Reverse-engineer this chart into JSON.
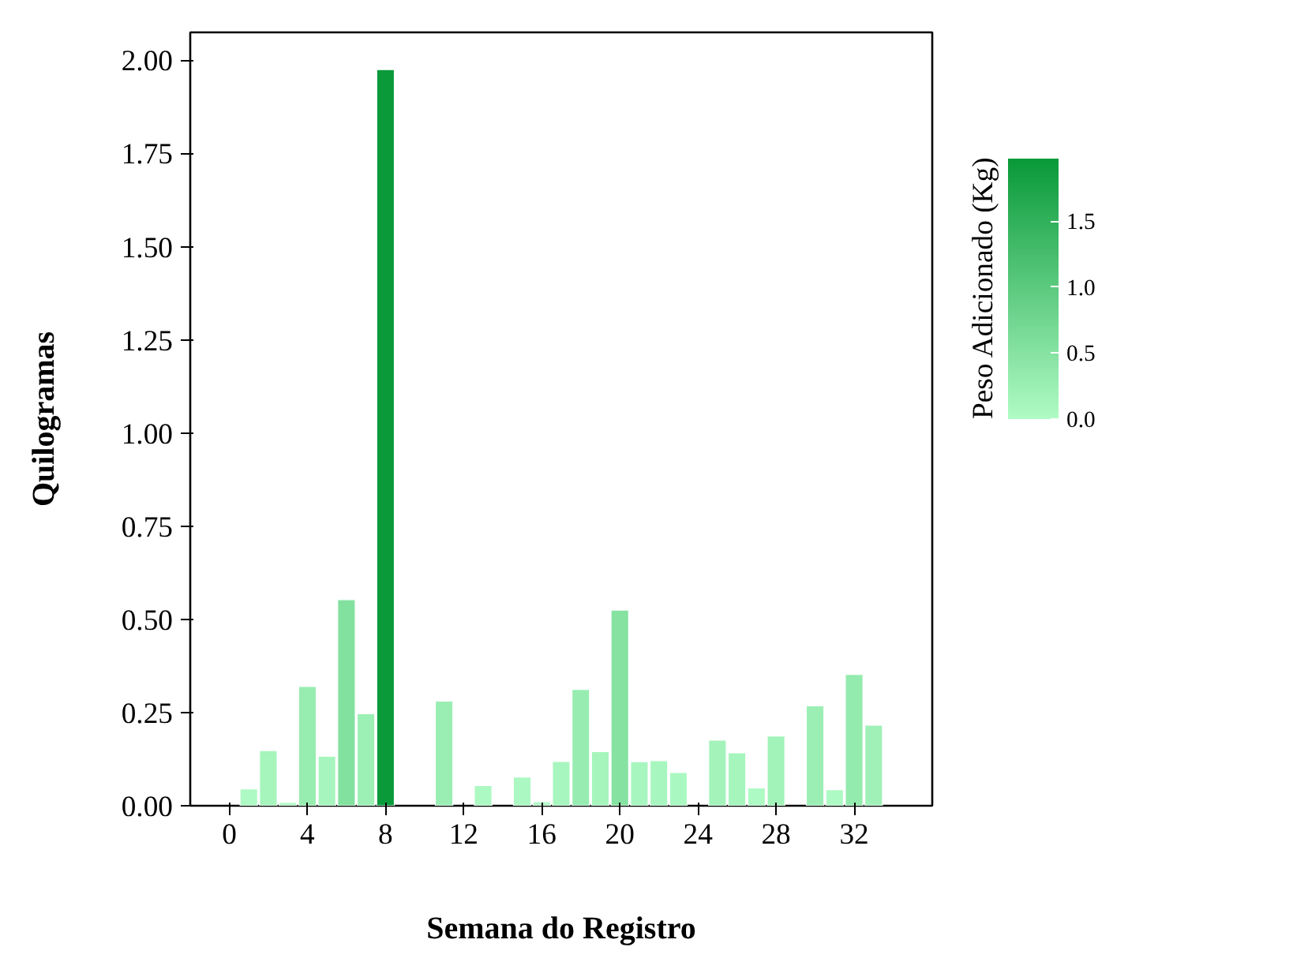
{
  "chart_data": {
    "type": "bar",
    "xlabel": "Semana do Registro",
    "ylabel": "Quilogramas",
    "legend_title": "Peso Adicionado (Kg)",
    "x": [
      1,
      2,
      3,
      4,
      5,
      6,
      7,
      8,
      9,
      10,
      11,
      12,
      13,
      14,
      15,
      16,
      17,
      18,
      19,
      20,
      21,
      22,
      23,
      24,
      25,
      26,
      27,
      28,
      29,
      30,
      31,
      32,
      33
    ],
    "values": [
      0.045,
      0.148,
      0.009,
      0.32,
      0.133,
      0.553,
      0.247,
      1.975,
      null,
      null,
      0.281,
      null,
      0.054,
      null,
      0.077,
      0.011,
      0.119,
      0.312,
      0.145,
      0.525,
      0.118,
      0.121,
      0.089,
      null,
      0.176,
      0.142,
      0.048,
      0.187,
      null,
      0.268,
      0.043,
      0.352,
      0.216
    ],
    "colors": [
      "#aefac4",
      "#a5f5bc",
      "#b1fcc6",
      "#97ecb0",
      "#a7f5be",
      "#83e1a0",
      "#9df0b5",
      "#0a9a3a",
      null,
      null,
      "#9aeeb3",
      null,
      "#adf9c3",
      null,
      "#abf8c2",
      "#b1fcc6",
      "#a8f6bf",
      "#97edb1",
      "#a6f5bd",
      "#85e2a1",
      "#a8f6bf",
      "#a8f6bf",
      "#aaf8c1",
      null,
      "#a3f3ba",
      "#a6f5bd",
      "#aefac4",
      "#a2f3ba",
      null,
      "#9befb4",
      "#aefac4",
      "#94ebae",
      "#a0f1b8"
    ],
    "xlim": [
      -2,
      36
    ],
    "xticks": [
      0,
      4,
      8,
      12,
      16,
      20,
      24,
      28,
      32
    ],
    "ylim": [
      0,
      2.075
    ],
    "yticks": [
      {
        "value": 0,
        "label": "0.00"
      },
      {
        "value": 0.25,
        "label": "0.25"
      },
      {
        "value": 0.5,
        "label": "0.50"
      },
      {
        "value": 0.75,
        "label": "0.75"
      },
      {
        "value": 1,
        "label": "1.00"
      },
      {
        "value": 1.25,
        "label": "1.25"
      },
      {
        "value": 1.5,
        "label": "1.50"
      },
      {
        "value": 1.75,
        "label": "1.75"
      },
      {
        "value": 2,
        "label": "2.00"
      }
    ],
    "clim": [
      0,
      1.975
    ],
    "cticks": [
      {
        "value": 0,
        "label": "0.0"
      },
      {
        "value": 0.5,
        "label": "0.5"
      },
      {
        "value": 1,
        "label": "1.0"
      },
      {
        "value": 1.5,
        "label": "1.5"
      }
    ],
    "grid": false
  }
}
